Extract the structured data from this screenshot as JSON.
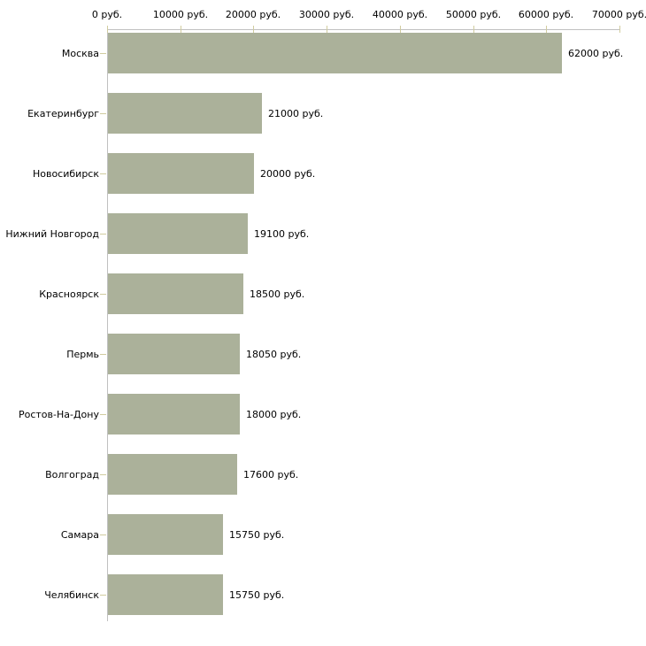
{
  "chart_data": {
    "type": "bar",
    "orientation": "horizontal",
    "unit": "руб.",
    "xlim": [
      0,
      70000
    ],
    "x_tick_values": [
      0,
      10000,
      20000,
      30000,
      40000,
      50000,
      60000,
      70000
    ],
    "x_tick_labels": [
      "0 руб.",
      "10000 руб.",
      "20000 руб.",
      "30000 руб.",
      "40000 руб.",
      "50000 руб.",
      "60000 руб.",
      "70000 руб."
    ],
    "categories": [
      "Москва",
      "Екатеринбург",
      "Новосибирск",
      "Нижний Новгород",
      "Красноярск",
      "Пермь",
      "Ростов-На-Дону",
      "Волгоград",
      "Самара",
      "Челябинск"
    ],
    "values": [
      62000,
      21000,
      20000,
      19100,
      18500,
      18050,
      18000,
      17600,
      15750,
      15750
    ],
    "value_labels": [
      "62000 руб.",
      "21000 руб.",
      "20000 руб.",
      "19100 руб.",
      "18500 руб.",
      "18050 руб.",
      "18000 руб.",
      "17600 руб.",
      "15750 руб.",
      "15750 руб."
    ],
    "grid": false,
    "legend": "none",
    "axis_position": "top",
    "colors": {
      "bar": "#abb19a",
      "axis_line": "#c0c0c0",
      "tick": "#d1cc9f",
      "text": "#000000",
      "background": "#ffffff"
    }
  }
}
